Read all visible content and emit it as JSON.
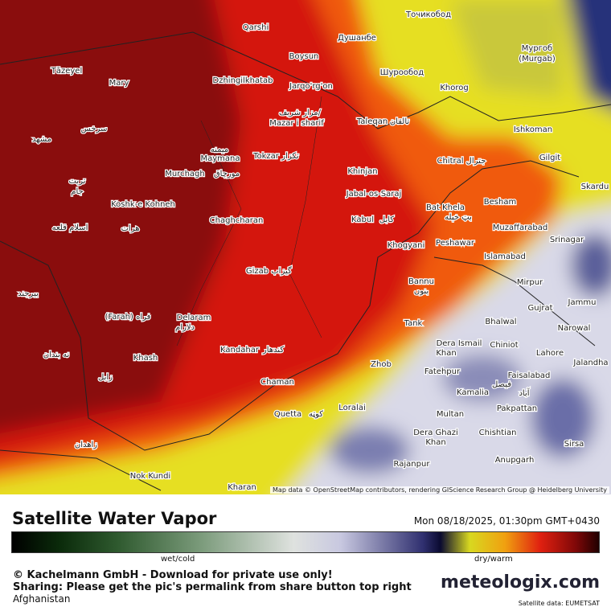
{
  "map": {
    "labels": [
      "Qarshi",
      "Душанбе",
      "Точикобод",
      "Boysun",
      "Мургоб",
      "(Murgab)",
      "Tāzeyel",
      "Mary",
      "Dzhingilkhatab",
      "Jarqo'rg'on",
      "Шурообод",
      "Khorog",
      "مزار شریف/",
      "Mazar i sharif",
      "Taleqan",
      "تالقان",
      "Ishkoman",
      "سرخس",
      "مشهد",
      "میمنه",
      "Maymana",
      "Tokzar",
      "تکزار",
      "Chitral",
      "جترال",
      "Gilgit",
      "Murchagh",
      "مورچاق",
      "Khinjan",
      "تربت",
      "جام",
      "Jabal-os-Saraj",
      "Skardu",
      "Koshk-e Kohneh",
      "Bat Khela",
      "Besham",
      "Kabul",
      "کابل",
      "Chaghcharan",
      "بټ خېله",
      "Muzaffarabad",
      "اسلام قلعه",
      "هرات",
      "Khogyani",
      "Peshawar",
      "Srinagar",
      "Islamabad",
      "Gizab",
      "گیزاب",
      "Bannu",
      "بنوں",
      "Mirpur",
      "بیرجند",
      "Jammu",
      "Gujrat",
      "(Farah) فراه",
      "Delaram",
      "دلارام",
      "Bhalwal",
      "Tank",
      "Narowal",
      "Dera Ismail",
      "Khan",
      "Chiniot",
      "Kandahar",
      "کندهار",
      "Lahore",
      "نه بندان",
      "Khash",
      "Jalandha",
      "Zhob",
      "Fatehpur",
      "Faisalabad",
      "فیصل",
      "آباد",
      "زابل",
      "Chaman",
      "Kamalia",
      "Loralai",
      "Quetta",
      "کوټه",
      "Multan",
      "Pakpattan",
      "Dera Ghazi",
      "Khan",
      "Chishtian",
      "زاهدان",
      "Sirsa",
      "Anupgarh",
      "Rajanpur",
      "Nok Kundi",
      "Kharan"
    ],
    "attribution": "Map data © OpenStreetMap contributors, rendering GIScience Research Group @ Heidelberg University"
  },
  "footer": {
    "title": "Satellite Water Vapor",
    "datetime": "Mon 08/18/2025, 01:30pm GMT+0430",
    "scale_low": "wet/cold",
    "scale_high": "dry/warm",
    "copyright": "© Kachelmann GmbH - Download for private use only!",
    "sharing": "Sharing: Please get the pic's permalink from share button top right",
    "region": "Afghanistan",
    "logo": "meteologix.com",
    "source": "Satellite data: EUMETSAT"
  }
}
